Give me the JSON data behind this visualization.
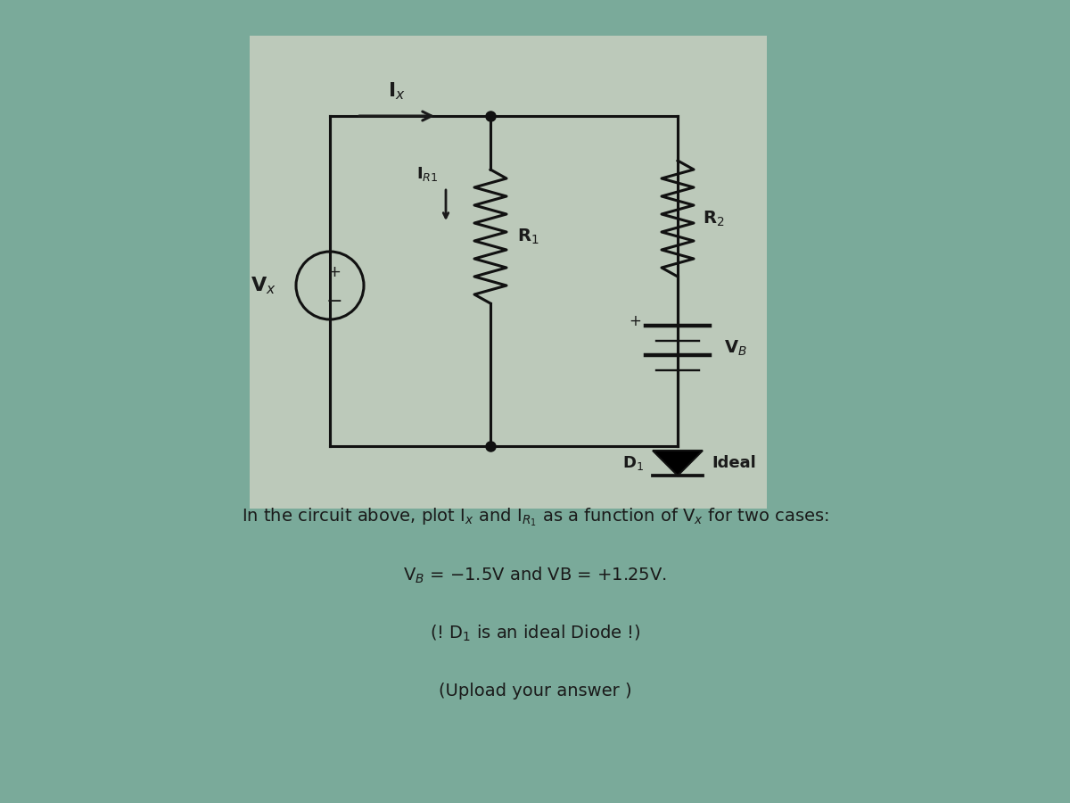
{
  "bg_color": "#7aaa9a",
  "panel_color": "#c8cfc0",
  "text_color": "#1a1a1a",
  "lc": "#111111",
  "lw": 2.2,
  "line1": "In the circuit above, plot Ix and IR1 as a function of Vx for two cases:",
  "line2": "VB = -1.5V and VB = +1.25V.",
  "line3": "( ! D1 is an ideal Diode ! )",
  "line4": "(Upload your answer )"
}
